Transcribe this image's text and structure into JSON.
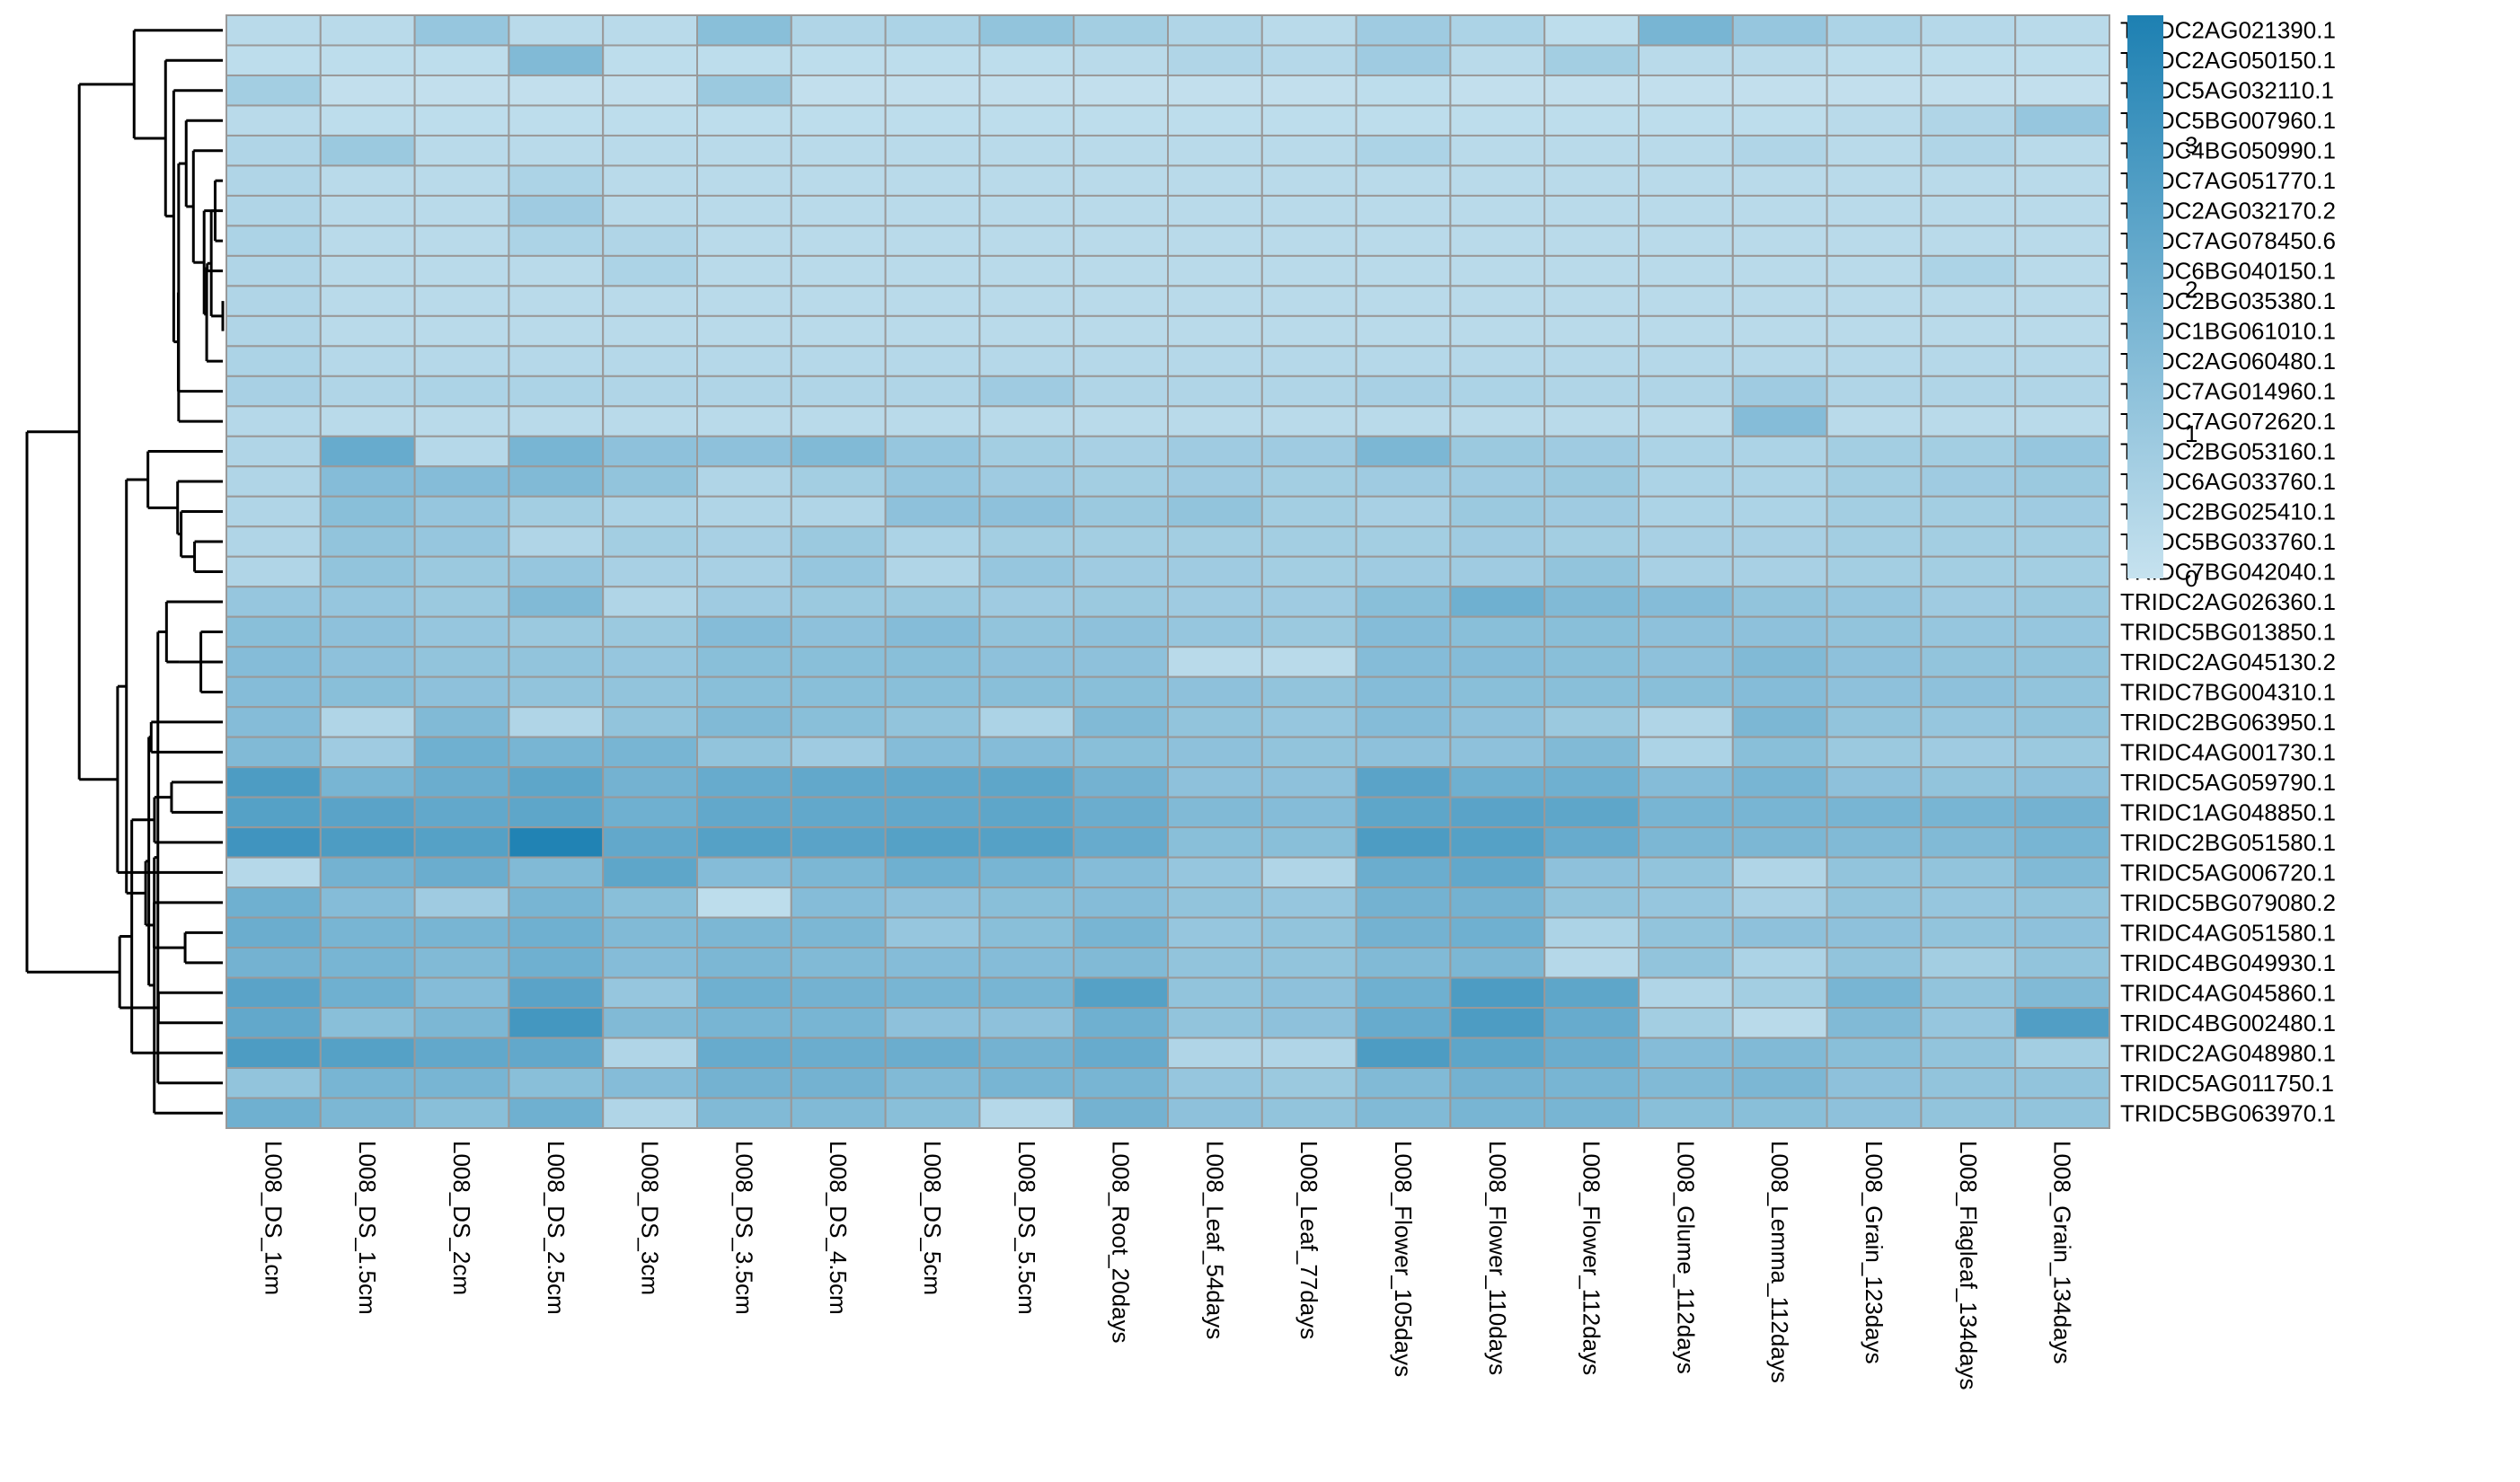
{
  "chart_data": {
    "type": "heatmap",
    "columns": [
      "L008_DS_1cm",
      "L008_DS_1.5cm",
      "L008_DS_2cm",
      "L008_DS_2.5cm",
      "L008_DS_3cm",
      "L008_DS_3.5cm",
      "L008_DS_4.5cm",
      "L008_DS_5cm",
      "L008_DS_5.5cm",
      "L008_Root_20days",
      "L008_Leaf_54days",
      "L008_Leaf_77days",
      "L008_Flower_105days",
      "L008_Flower_110days",
      "L008_Flower_112days",
      "L008_Glume_112days",
      "L008_Lemma_112days",
      "L008_Grain_123days",
      "L008_Flagleaf_134days",
      "L008_Grain_134days"
    ],
    "rows": [
      "TRIDC2AG021390.1",
      "TRIDC2AG050150.1",
      "TRIDC5AG032110.1",
      "TRIDC5BG007960.1",
      "TRIDC4BG050990.1",
      "TRIDC7AG051770.1",
      "TRIDC2AG032170.2",
      "TRIDC7AG078450.6",
      "TRIDC6BG040150.1",
      "TRIDC2BG035380.1",
      "TRIDC1BG061010.1",
      "TRIDC2AG060480.1",
      "TRIDC7AG014960.1",
      "TRIDC7AG072620.1",
      "TRIDC2BG053160.1",
      "TRIDC6AG033760.1",
      "TRIDC2BG025410.1",
      "TRIDC5BG033760.1",
      "TRIDC7BG042040.1",
      "TRIDC2AG026360.1",
      "TRIDC5BG013850.1",
      "TRIDC2AG045130.2",
      "TRIDC7BG004310.1",
      "TRIDC2BG063950.1",
      "TRIDC4AG001730.1",
      "TRIDC5AG059790.1",
      "TRIDC1AG048850.1",
      "TRIDC2BG051580.1",
      "TRIDC5AG006720.1",
      "TRIDC5BG079080.2",
      "TRIDC4AG051580.1",
      "TRIDC4BG049930.1",
      "TRIDC4AG045860.1",
      "TRIDC4BG002480.1",
      "TRIDC2AG048980.1",
      "TRIDC5AG011750.1",
      "TRIDC5BG063970.1"
    ],
    "values": [
      [
        0.3,
        0.3,
        1.1,
        0.3,
        0.3,
        1.4,
        0.5,
        0.6,
        1.2,
        0.8,
        0.5,
        0.3,
        0.9,
        0.6,
        0.2,
        1.8,
        1.1,
        0.6,
        0.4,
        0.3
      ],
      [
        0.2,
        0.2,
        0.2,
        1.6,
        0.2,
        0.2,
        0.2,
        0.2,
        0.2,
        0.3,
        0.5,
        0.4,
        0.9,
        0.3,
        0.8,
        0.3,
        0.3,
        0.2,
        0.2,
        0.2
      ],
      [
        0.8,
        0.1,
        0.1,
        0.1,
        0.1,
        1.0,
        0.1,
        0.1,
        0.1,
        0.1,
        0.1,
        0.1,
        0.2,
        0.1,
        0.1,
        0.1,
        0.1,
        0.1,
        0.1,
        0.1
      ],
      [
        0.3,
        0.2,
        0.2,
        0.2,
        0.2,
        0.2,
        0.2,
        0.2,
        0.2,
        0.2,
        0.2,
        0.2,
        0.2,
        0.2,
        0.2,
        0.2,
        0.2,
        0.3,
        0.5,
        1.1
      ],
      [
        0.5,
        1.0,
        0.3,
        0.3,
        0.3,
        0.3,
        0.3,
        0.3,
        0.3,
        0.3,
        0.3,
        0.3,
        0.6,
        0.3,
        0.3,
        0.3,
        0.5,
        0.3,
        0.5,
        0.3
      ],
      [
        0.5,
        0.3,
        0.3,
        0.6,
        0.3,
        0.3,
        0.3,
        0.3,
        0.3,
        0.3,
        0.3,
        0.3,
        0.3,
        0.3,
        0.3,
        0.3,
        0.3,
        0.3,
        0.3,
        0.3
      ],
      [
        0.5,
        0.3,
        0.3,
        0.9,
        0.3,
        0.3,
        0.3,
        0.3,
        0.3,
        0.3,
        0.3,
        0.3,
        0.3,
        0.3,
        0.3,
        0.3,
        0.3,
        0.3,
        0.3,
        0.3
      ],
      [
        0.6,
        0.3,
        0.3,
        0.6,
        0.5,
        0.3,
        0.3,
        0.3,
        0.3,
        0.3,
        0.3,
        0.3,
        0.3,
        0.3,
        0.3,
        0.3,
        0.3,
        0.3,
        0.3,
        0.3
      ],
      [
        0.5,
        0.3,
        0.3,
        0.3,
        0.6,
        0.3,
        0.3,
        0.3,
        0.3,
        0.3,
        0.3,
        0.3,
        0.3,
        0.3,
        0.3,
        0.3,
        0.3,
        0.3,
        0.6,
        0.3
      ],
      [
        0.5,
        0.3,
        0.3,
        0.3,
        0.3,
        0.3,
        0.3,
        0.3,
        0.3,
        0.3,
        0.3,
        0.3,
        0.3,
        0.3,
        0.3,
        0.3,
        0.3,
        0.3,
        0.3,
        0.3
      ],
      [
        0.5,
        0.3,
        0.3,
        0.3,
        0.3,
        0.3,
        0.3,
        0.3,
        0.3,
        0.3,
        0.3,
        0.3,
        0.3,
        0.3,
        0.3,
        0.3,
        0.3,
        0.3,
        0.3,
        0.3
      ],
      [
        0.6,
        0.4,
        0.4,
        0.4,
        0.4,
        0.4,
        0.4,
        0.4,
        0.4,
        0.4,
        0.4,
        0.4,
        0.4,
        0.4,
        0.4,
        0.4,
        0.4,
        0.4,
        0.4,
        0.4
      ],
      [
        0.7,
        0.5,
        0.6,
        0.6,
        0.5,
        0.5,
        0.5,
        0.5,
        0.9,
        0.5,
        0.5,
        0.5,
        0.7,
        0.6,
        0.5,
        0.5,
        0.9,
        0.5,
        0.5,
        0.5
      ],
      [
        0.4,
        0.3,
        0.3,
        0.3,
        0.3,
        0.3,
        0.3,
        0.3,
        0.3,
        0.3,
        0.3,
        0.3,
        0.3,
        0.3,
        0.3,
        0.3,
        1.5,
        0.3,
        0.3,
        0.3
      ],
      [
        0.5,
        2.2,
        0.4,
        1.8,
        1.3,
        1.3,
        1.6,
        1.1,
        0.8,
        0.7,
        0.9,
        0.9,
        1.7,
        1.0,
        0.9,
        0.6,
        0.6,
        0.8,
        0.8,
        1.1
      ],
      [
        0.5,
        1.5,
        1.5,
        1.6,
        1.2,
        0.5,
        0.8,
        1.1,
        0.9,
        0.8,
        0.9,
        0.8,
        0.9,
        0.9,
        1.0,
        0.6,
        0.6,
        0.8,
        0.9,
        1.0
      ],
      [
        0.5,
        1.4,
        1.1,
        0.8,
        0.6,
        0.5,
        0.5,
        1.3,
        1.3,
        1.0,
        1.2,
        0.8,
        0.7,
        1.0,
        0.9,
        0.6,
        0.6,
        0.8,
        0.8,
        0.9
      ],
      [
        0.5,
        1.2,
        1.1,
        0.5,
        0.8,
        0.7,
        1.0,
        0.6,
        0.8,
        0.8,
        0.8,
        0.8,
        0.8,
        0.9,
        0.8,
        0.7,
        0.7,
        0.8,
        0.8,
        0.8
      ],
      [
        0.5,
        1.2,
        1.0,
        1.1,
        0.7,
        0.7,
        1.1,
        0.5,
        1.1,
        0.9,
        0.9,
        0.8,
        0.9,
        0.9,
        1.2,
        0.7,
        0.7,
        0.8,
        0.8,
        0.8
      ],
      [
        1.1,
        1.1,
        1.0,
        1.6,
        0.5,
        0.9,
        1.0,
        1.0,
        0.9,
        1.0,
        0.9,
        0.9,
        1.4,
        2.0,
        1.6,
        1.5,
        1.2,
        1.1,
        0.9,
        1.0
      ],
      [
        1.4,
        1.3,
        1.1,
        1.0,
        1.0,
        1.5,
        1.3,
        1.5,
        1.2,
        1.3,
        1.1,
        1.0,
        1.5,
        1.4,
        1.4,
        1.3,
        1.3,
        1.2,
        1.1,
        1.1
      ],
      [
        1.5,
        1.3,
        1.2,
        1.2,
        1.1,
        1.4,
        1.4,
        1.4,
        1.3,
        1.3,
        0.3,
        0.3,
        1.5,
        1.5,
        1.4,
        1.3,
        1.6,
        1.3,
        1.2,
        1.2
      ],
      [
        1.5,
        1.4,
        1.3,
        1.2,
        1.2,
        1.4,
        1.4,
        1.4,
        1.4,
        1.4,
        1.3,
        1.2,
        1.5,
        1.4,
        1.4,
        1.4,
        1.5,
        1.3,
        1.3,
        1.2
      ],
      [
        1.5,
        0.5,
        1.6,
        0.5,
        1.2,
        1.6,
        1.4,
        1.2,
        0.6,
        1.6,
        1.2,
        1.1,
        1.5,
        1.3,
        1.0,
        0.5,
        1.7,
        1.2,
        1.1,
        1.2
      ],
      [
        1.6,
        0.9,
        2.0,
        1.8,
        1.8,
        1.2,
        0.9,
        1.5,
        1.5,
        1.4,
        1.3,
        1.2,
        1.3,
        1.3,
        1.6,
        0.6,
        1.4,
        1.0,
        0.9,
        1.0
      ],
      [
        2.8,
        1.8,
        2.1,
        2.4,
        1.9,
        2.2,
        2.3,
        2.3,
        2.4,
        1.9,
        1.3,
        1.3,
        2.5,
        2.0,
        2.0,
        1.5,
        1.8,
        1.3,
        1.2,
        1.3
      ],
      [
        2.6,
        2.5,
        2.3,
        2.4,
        2.0,
        2.3,
        2.3,
        2.3,
        2.4,
        2.1,
        1.6,
        1.5,
        2.4,
        2.5,
        2.4,
        1.8,
        1.8,
        1.8,
        1.8,
        1.9
      ],
      [
        3.1,
        2.8,
        2.6,
        3.8,
        2.3,
        2.6,
        2.5,
        2.6,
        2.6,
        2.2,
        1.4,
        1.4,
        2.8,
        2.6,
        2.2,
        1.7,
        1.7,
        1.6,
        1.6,
        1.8
      ],
      [
        0.4,
        1.9,
        2.1,
        1.6,
        2.4,
        1.5,
        1.7,
        2.0,
        1.8,
        1.5,
        1.1,
        0.5,
        2.1,
        2.3,
        1.3,
        1.2,
        0.5,
        1.2,
        1.2,
        1.6
      ],
      [
        2.0,
        1.5,
        0.9,
        1.8,
        1.4,
        0.2,
        1.5,
        1.3,
        1.4,
        1.5,
        1.2,
        1.1,
        1.9,
        1.9,
        1.2,
        1.1,
        0.7,
        1.2,
        1.1,
        1.2
      ],
      [
        2.1,
        1.8,
        1.8,
        2.0,
        1.6,
        1.7,
        1.7,
        1.1,
        1.4,
        1.8,
        1.1,
        1.2,
        1.9,
        2.0,
        0.6,
        1.2,
        1.3,
        1.3,
        1.2,
        1.3
      ],
      [
        1.9,
        1.8,
        1.6,
        2.0,
        1.5,
        1.7,
        1.6,
        1.5,
        1.5,
        1.6,
        1.2,
        1.2,
        1.6,
        1.7,
        0.4,
        1.2,
        0.6,
        1.2,
        0.8,
        1.2
      ],
      [
        2.5,
        2.0,
        1.5,
        2.5,
        1.1,
        2.0,
        1.9,
        1.8,
        1.8,
        2.6,
        1.2,
        1.3,
        2.0,
        2.8,
        2.4,
        0.5,
        0.8,
        1.8,
        1.2,
        1.6
      ],
      [
        2.3,
        1.4,
        1.7,
        3.0,
        1.6,
        1.8,
        1.8,
        1.3,
        1.3,
        2.0,
        1.2,
        1.3,
        2.2,
        2.8,
        2.2,
        0.8,
        0.3,
        1.6,
        1.1,
        2.7
      ],
      [
        2.8,
        2.6,
        2.3,
        2.3,
        0.5,
        2.2,
        2.1,
        2.1,
        1.9,
        2.2,
        0.5,
        0.5,
        2.8,
        2.4,
        2.1,
        1.5,
        1.6,
        1.4,
        1.2,
        0.8
      ],
      [
        1.2,
        1.8,
        1.8,
        1.4,
        1.5,
        1.9,
        1.9,
        1.6,
        1.8,
        1.8,
        1.1,
        1.0,
        1.6,
        1.9,
        1.8,
        1.6,
        1.7,
        1.3,
        1.2,
        1.2
      ],
      [
        2.0,
        1.7,
        1.4,
        2.0,
        0.5,
        1.6,
        1.6,
        1.4,
        0.4,
        1.9,
        1.3,
        1.2,
        1.6,
        1.8,
        1.8,
        1.4,
        1.4,
        1.3,
        1.2,
        1.2
      ]
    ],
    "color_min": "#c6e2ef",
    "color_max": "#1d80b2",
    "cell_border": "#999999",
    "value_range": [
      0,
      3.9
    ],
    "legend": {
      "ticks": [
        0,
        1,
        2,
        3
      ],
      "tick_labels": [
        "0",
        "1",
        "2",
        "3"
      ],
      "placement": "top-right"
    },
    "row_dendrogram": true,
    "dendrogram_color": "#000000",
    "row_order": [
      0,
      1,
      2,
      3,
      4,
      5,
      6,
      7,
      8,
      9,
      10,
      11,
      12,
      13,
      14,
      15,
      16,
      17,
      18,
      19,
      20,
      21,
      22,
      23,
      24,
      25,
      26,
      27,
      28,
      29,
      30,
      31,
      32,
      33,
      34,
      35,
      36
    ]
  }
}
